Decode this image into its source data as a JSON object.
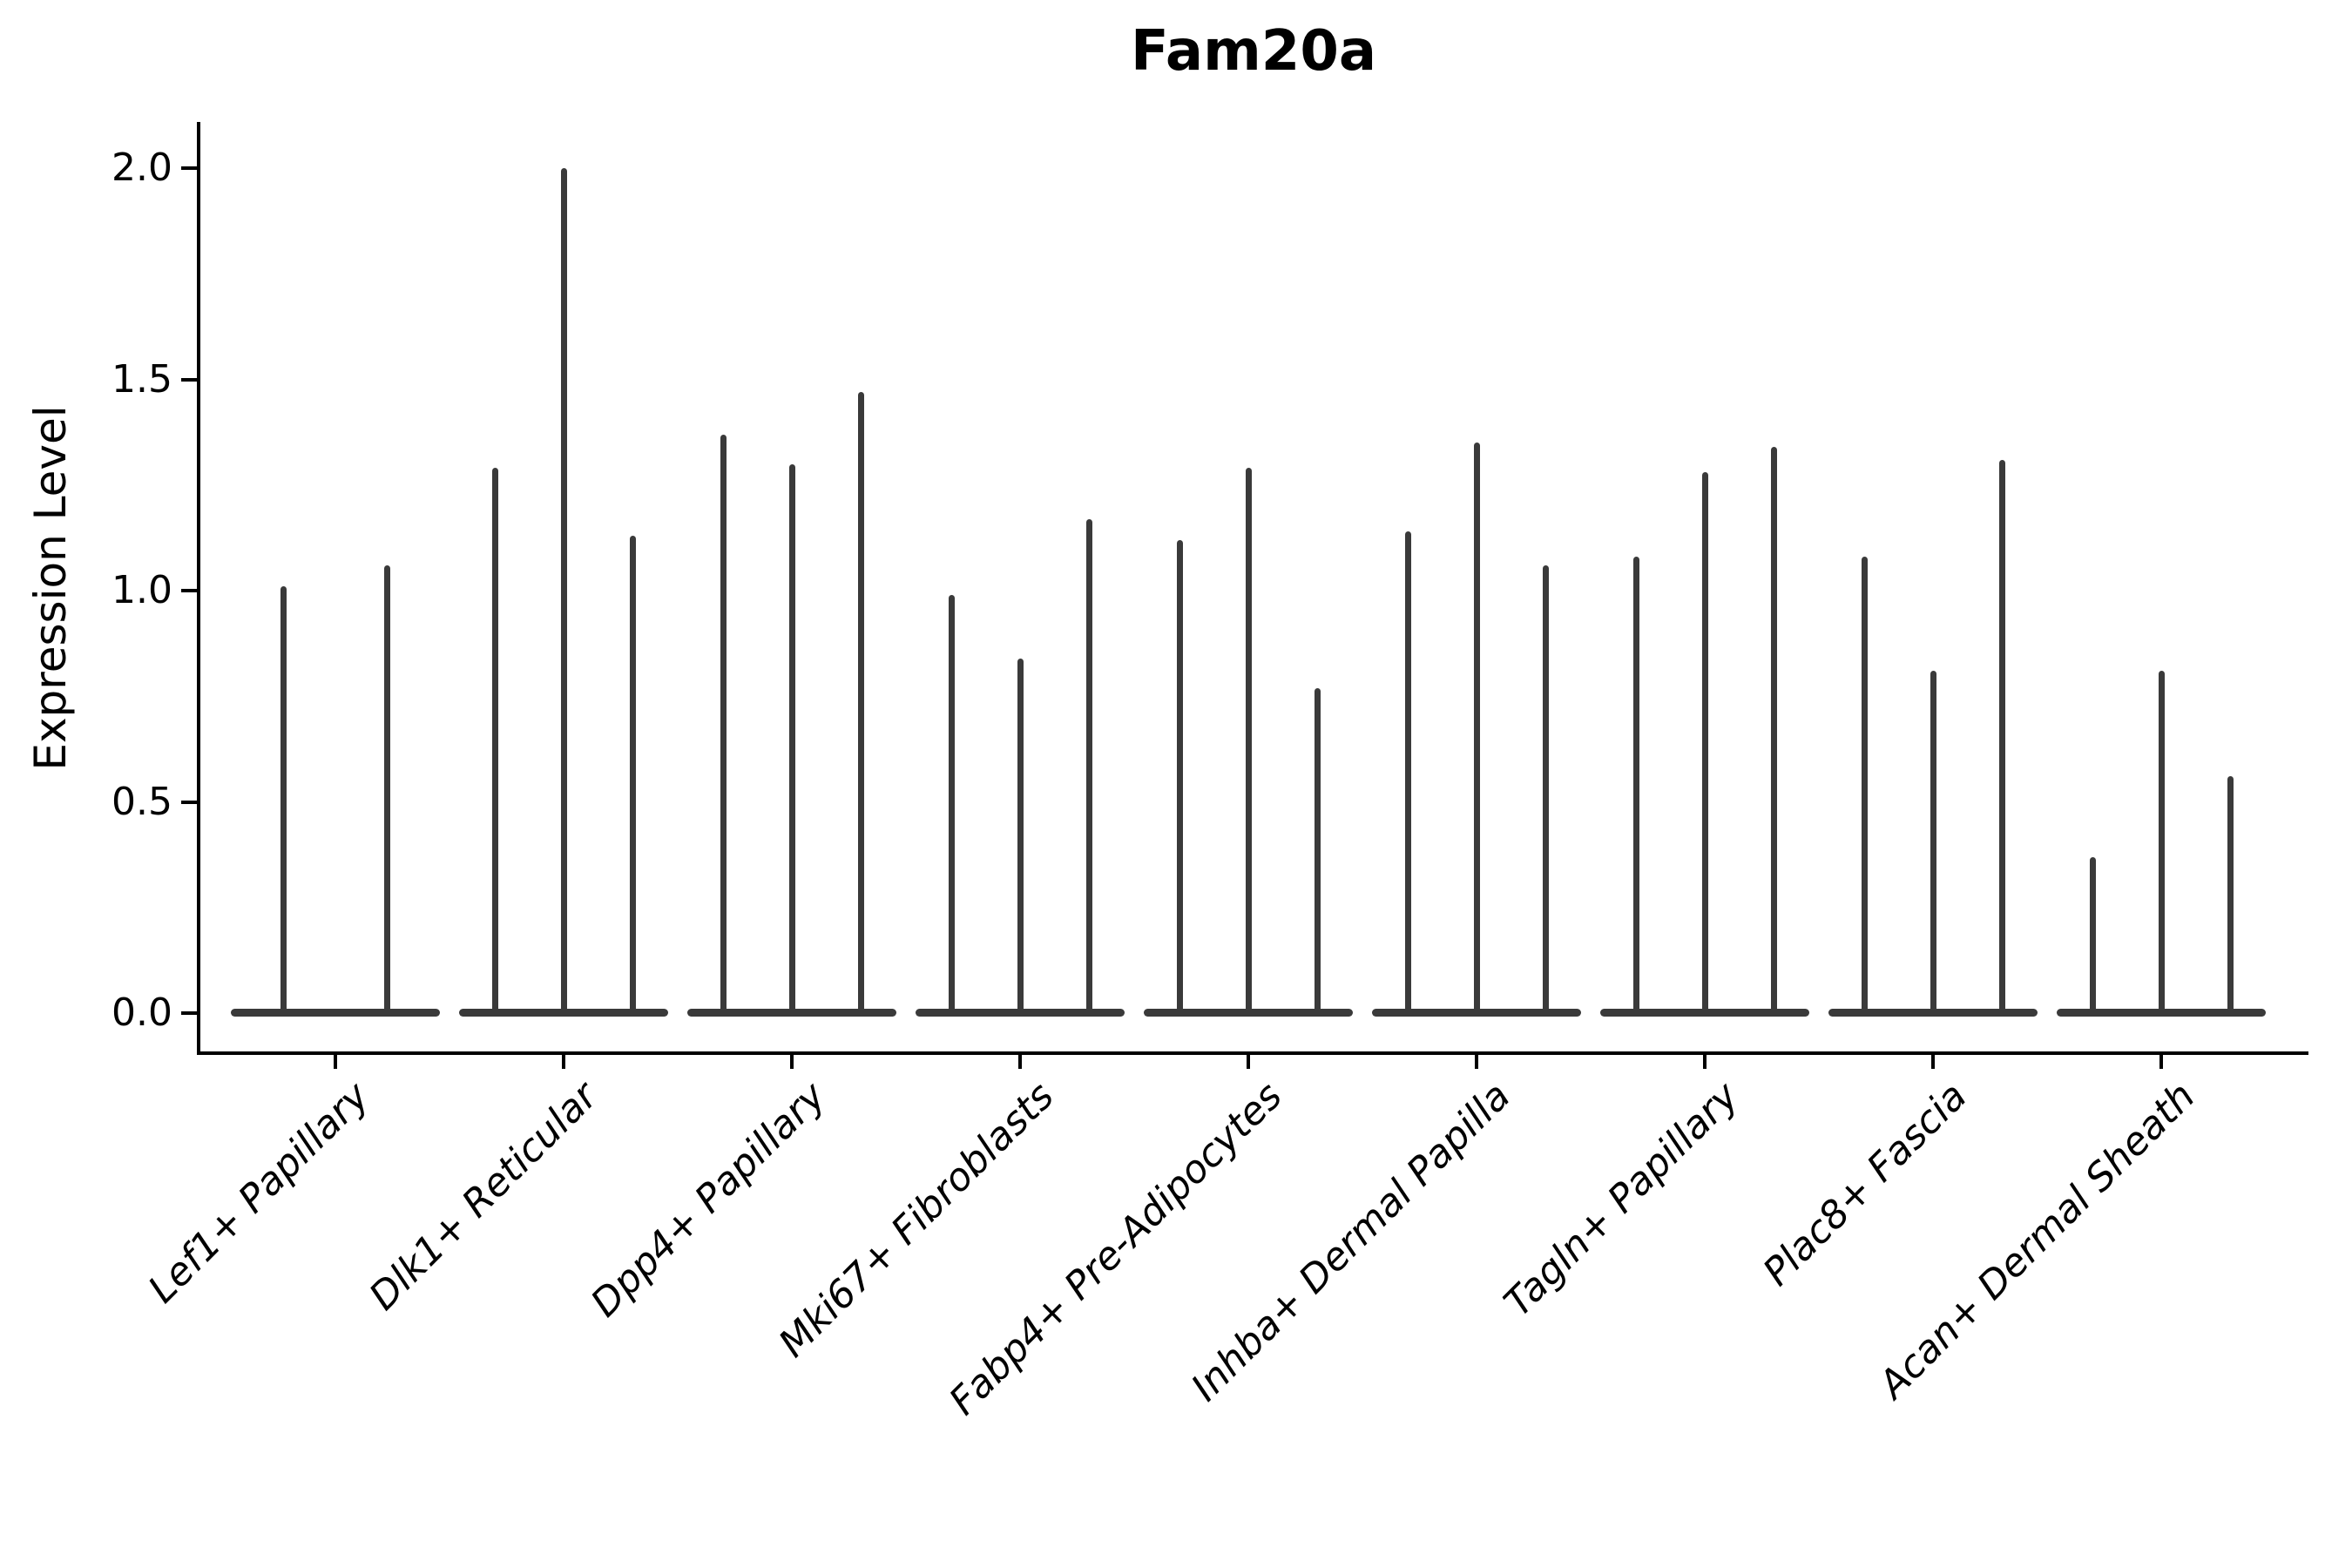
{
  "chart_data": {
    "type": "violin",
    "title": "Fam20a",
    "ylabel": "Expression Level",
    "xlabel": "",
    "ylim": [
      0,
      2.1
    ],
    "yticks": [
      {
        "value": 0.0,
        "label": "0.0"
      },
      {
        "value": 0.5,
        "label": "0.5"
      },
      {
        "value": 1.0,
        "label": "1.0"
      },
      {
        "value": 1.5,
        "label": "1.5"
      },
      {
        "value": 2.0,
        "label": "2.0"
      }
    ],
    "grid": false,
    "legend": null,
    "x_tick_rotation_degrees": 45,
    "description": "Single-cell expression violin plot; each category shows very thin violins (mass concentrated at 0) whose upper tails peak at the listed expression values",
    "groups": [
      {
        "label": "Lef1+ Papillary",
        "violin_peaks": [
          1.01,
          1.06
        ]
      },
      {
        "label": "Dlk1+ Reticular",
        "violin_peaks": [
          1.29,
          2.0,
          1.13
        ]
      },
      {
        "label": "Dpp4+ Papillary",
        "violin_peaks": [
          1.37,
          1.3,
          1.47
        ]
      },
      {
        "label": "Mki67+ Fibroblasts",
        "violin_peaks": [
          0.99,
          0.84,
          1.17
        ]
      },
      {
        "label": "Fabp4+ Pre-Adipocytes",
        "violin_peaks": [
          1.12,
          1.29,
          0.77
        ]
      },
      {
        "label": "Inhba+ Dermal Papilla",
        "violin_peaks": [
          1.14,
          1.35,
          1.06
        ]
      },
      {
        "label": "Tagln+ Papillary",
        "violin_peaks": [
          1.08,
          1.28,
          1.34
        ]
      },
      {
        "label": "Plac8+ Fascia",
        "violin_peaks": [
          1.08,
          0.81,
          1.31
        ]
      },
      {
        "label": "Acan+ Dermal Sheath",
        "violin_peaks": [
          0.37,
          0.81,
          0.56
        ]
      }
    ],
    "colors": {
      "violin": "#3a3a3a",
      "axis": "#000000",
      "text": "#000000",
      "background": "#ffffff"
    }
  }
}
